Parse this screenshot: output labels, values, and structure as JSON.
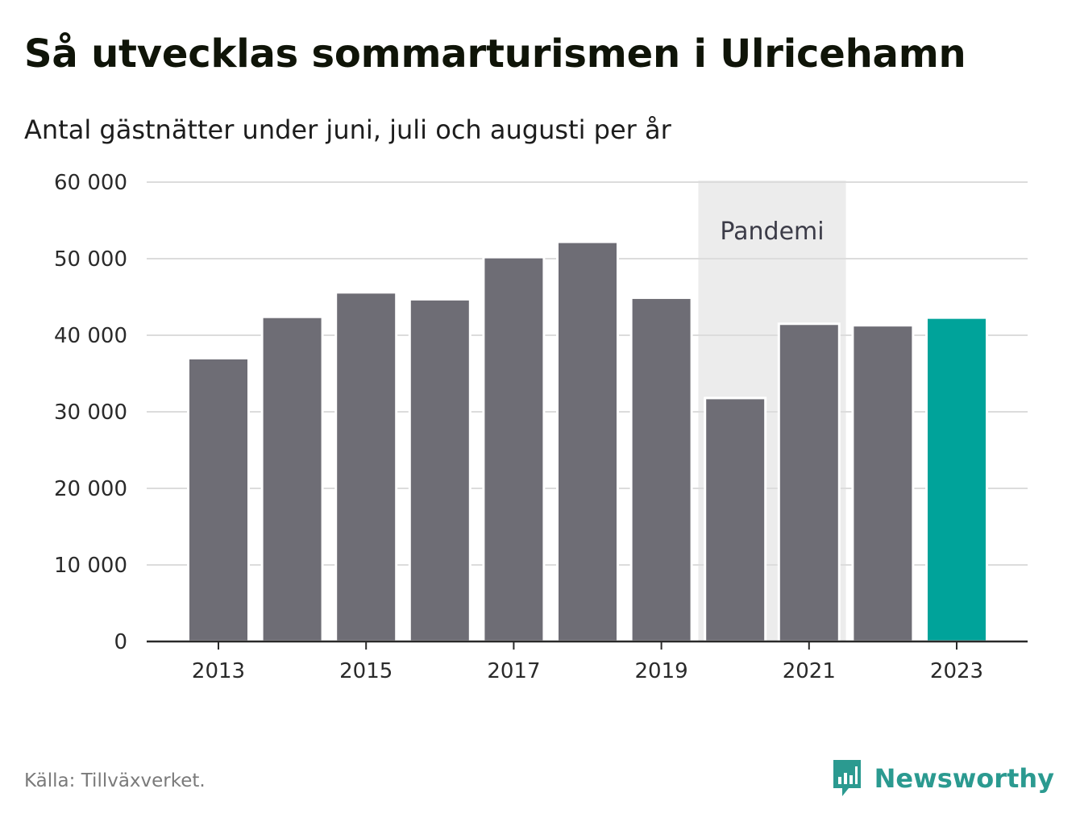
{
  "header": {
    "title": "Så utvecklas sommarturismen i Ulricehamn",
    "subtitle": "Antal gästnätter under juni, juli och augusti per år"
  },
  "chart_data": {
    "type": "bar",
    "categories": [
      "2013",
      "2014",
      "2015",
      "2016",
      "2017",
      "2018",
      "2019",
      "2020",
      "2021",
      "2022",
      "2023"
    ],
    "values": [
      37000,
      42400,
      45600,
      44700,
      50200,
      52200,
      44900,
      31800,
      41500,
      41300,
      42300
    ],
    "ylim": [
      0,
      60000
    ],
    "yticks": [
      0,
      10000,
      20000,
      30000,
      40000,
      50000,
      60000
    ],
    "ytick_labels": [
      "0",
      "10 000",
      "20 000",
      "30 000",
      "40 000",
      "50 000",
      "60 000"
    ],
    "xtick_labels": [
      "2013",
      "2015",
      "2017",
      "2019",
      "2021",
      "2023"
    ],
    "grid": true,
    "bar_color": "#6e6d75",
    "highlight_color": "#00a39a",
    "highlight_category": "2023",
    "annotation": {
      "label": "Pandemi",
      "from": "2020",
      "to": "2021",
      "color": "#ececec"
    }
  },
  "footer": {
    "source": "Källa: Tillväxverket.",
    "brand": "Newsworthy",
    "brand_color": "#2b9a90",
    "brand_icon": "newsworthy-logo-icon"
  }
}
